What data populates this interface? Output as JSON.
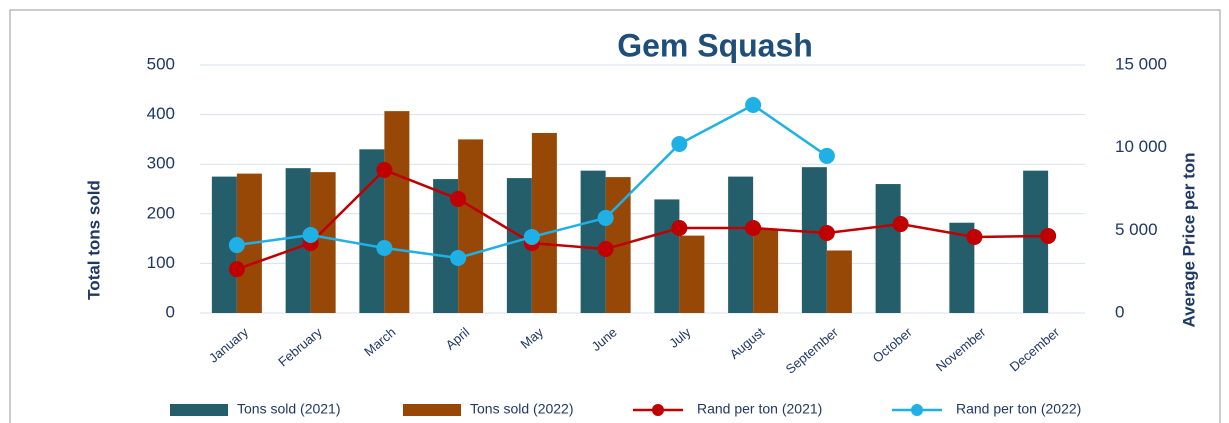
{
  "chart_data": {
    "type": "bar_line",
    "title": "Gem Squash",
    "y_label": "Total tons sold",
    "y2_label": "Average Price per ton",
    "categories": [
      "January",
      "February",
      "March",
      "April",
      "May",
      "June",
      "July",
      "August",
      "September",
      "October",
      "November",
      "December"
    ],
    "series": [
      {
        "name": "Tons sold (2021)",
        "type": "bar",
        "color": "#255e6b",
        "values": [
          275,
          292,
          330,
          270,
          272,
          287,
          229,
          275,
          294,
          260,
          182,
          287
        ]
      },
      {
        "name": "Tons sold (2022)",
        "type": "bar",
        "color": "#974706",
        "values": [
          281,
          284,
          407,
          350,
          363,
          274,
          156,
          170,
          126,
          null,
          null,
          null
        ]
      },
      {
        "name": "Rand per ton (2021)",
        "type": "line",
        "axis": "y2",
        "color": "#c00000",
        "values": [
          2650,
          4230,
          8650,
          6900,
          4230,
          3870,
          5140,
          5140,
          4840,
          5380,
          4600,
          4660
        ]
      },
      {
        "name": "Rand per ton (2022)",
        "type": "line",
        "axis": "y2",
        "color": "#1fb1e6",
        "values": [
          4110,
          4720,
          3930,
          3330,
          4600,
          5750,
          10220,
          12580,
          9500,
          null,
          null,
          null
        ]
      }
    ],
    "ylim": [
      0,
      500
    ],
    "yticks": [
      0,
      100,
      200,
      300,
      400,
      500
    ],
    "y2lim": [
      0,
      15000
    ],
    "y2ticks": [
      0,
      {
        "value": 5000,
        "label": "5 000"
      },
      {
        "value": 10000,
        "label": "10 000"
      },
      {
        "value": 15000,
        "label": "15 000"
      }
    ],
    "grid": true,
    "legend": "bottom"
  }
}
